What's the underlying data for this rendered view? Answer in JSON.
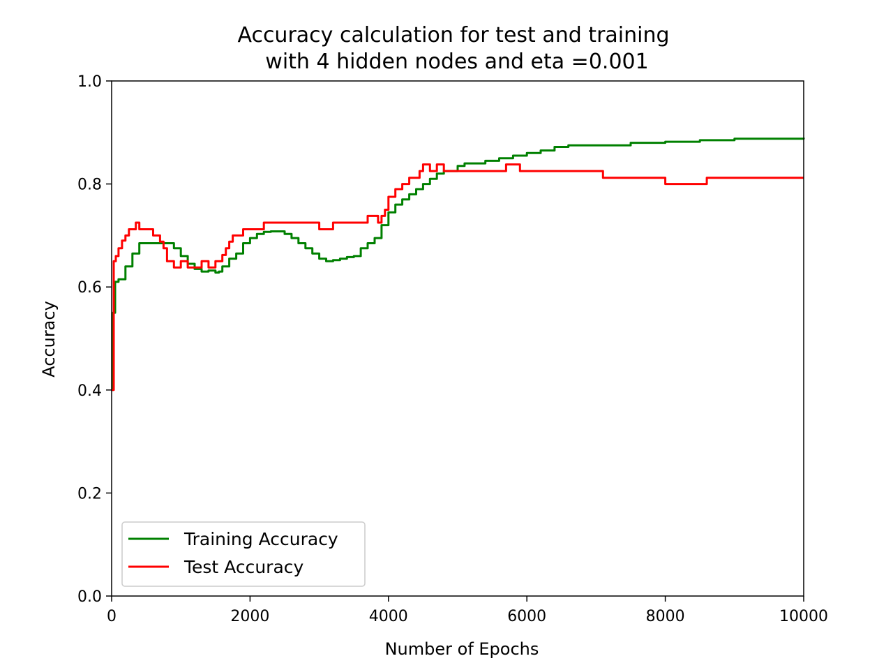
{
  "chart_data": {
    "type": "line",
    "title_lines": [
      "Accuracy calculation for test and training",
      "with 4 hidden nodes and eta =0.001"
    ],
    "xlabel": "Number of Epochs",
    "ylabel": "Accuracy",
    "xlim": [
      0,
      10000
    ],
    "ylim": [
      0,
      1
    ],
    "xticks": [
      0,
      2000,
      4000,
      6000,
      8000,
      10000
    ],
    "xtick_labels": [
      "0",
      "2000",
      "4000",
      "6000",
      "8000",
      "10000"
    ],
    "yticks": [
      0,
      0.2,
      0.4,
      0.6,
      0.8,
      1.0
    ],
    "ytick_labels": [
      "0.0",
      "0.2",
      "0.4",
      "0.6",
      "0.8",
      "1.0"
    ],
    "grid": false,
    "legend": "lower-left",
    "series": [
      {
        "name": "Training Accuracy",
        "color": "#008000",
        "x": [
          0,
          20,
          50,
          100,
          200,
          300,
          400,
          500,
          600,
          700,
          800,
          900,
          1000,
          1100,
          1200,
          1300,
          1400,
          1500,
          1550,
          1600,
          1700,
          1800,
          1900,
          2000,
          2100,
          2200,
          2300,
          2400,
          2500,
          2600,
          2700,
          2800,
          2900,
          3000,
          3100,
          3200,
          3300,
          3400,
          3500,
          3600,
          3700,
          3800,
          3900,
          4000,
          4100,
          4200,
          4300,
          4400,
          4500,
          4600,
          4700,
          4800,
          5000,
          5100,
          5200,
          5400,
          5600,
          5800,
          6000,
          6200,
          6400,
          6600,
          6800,
          7000,
          7500,
          8000,
          8500,
          9000,
          9500,
          10000
        ],
        "y": [
          0.4,
          0.55,
          0.61,
          0.615,
          0.64,
          0.665,
          0.685,
          0.685,
          0.685,
          0.685,
          0.685,
          0.675,
          0.66,
          0.645,
          0.635,
          0.63,
          0.632,
          0.628,
          0.63,
          0.64,
          0.655,
          0.665,
          0.685,
          0.695,
          0.703,
          0.707,
          0.708,
          0.708,
          0.703,
          0.695,
          0.685,
          0.675,
          0.665,
          0.655,
          0.65,
          0.652,
          0.655,
          0.658,
          0.66,
          0.675,
          0.685,
          0.695,
          0.72,
          0.745,
          0.76,
          0.77,
          0.78,
          0.79,
          0.8,
          0.81,
          0.82,
          0.825,
          0.835,
          0.84,
          0.84,
          0.845,
          0.85,
          0.855,
          0.86,
          0.865,
          0.872,
          0.875,
          0.875,
          0.875,
          0.88,
          0.882,
          0.885,
          0.888,
          0.888,
          0.89
        ]
      },
      {
        "name": "Test Accuracy",
        "color": "#ff0000",
        "x": [
          0,
          30,
          60,
          100,
          150,
          200,
          250,
          300,
          350,
          400,
          500,
          600,
          700,
          750,
          800,
          900,
          1000,
          1100,
          1200,
          1300,
          1400,
          1500,
          1600,
          1650,
          1700,
          1750,
          1800,
          1900,
          2000,
          2200,
          2400,
          2600,
          2800,
          3000,
          3100,
          3200,
          3400,
          3600,
          3700,
          3800,
          3850,
          3900,
          3950,
          4000,
          4100,
          4200,
          4300,
          4400,
          4450,
          4500,
          4600,
          4700,
          4800,
          5000,
          5200,
          5400,
          5600,
          5700,
          5800,
          5900,
          6000,
          6500,
          7000,
          7100,
          7500,
          7900,
          8000,
          8500,
          8600,
          8700,
          9000,
          9500,
          10000
        ],
        "y": [
          0.4,
          0.65,
          0.66,
          0.675,
          0.69,
          0.7,
          0.712,
          0.712,
          0.725,
          0.712,
          0.712,
          0.7,
          0.688,
          0.675,
          0.65,
          0.638,
          0.65,
          0.638,
          0.638,
          0.65,
          0.638,
          0.65,
          0.662,
          0.675,
          0.688,
          0.7,
          0.7,
          0.712,
          0.712,
          0.725,
          0.725,
          0.725,
          0.725,
          0.712,
          0.712,
          0.725,
          0.725,
          0.725,
          0.738,
          0.738,
          0.725,
          0.738,
          0.75,
          0.775,
          0.79,
          0.8,
          0.812,
          0.812,
          0.825,
          0.838,
          0.825,
          0.838,
          0.825,
          0.825,
          0.825,
          0.825,
          0.825,
          0.838,
          0.838,
          0.825,
          0.825,
          0.825,
          0.825,
          0.812,
          0.812,
          0.812,
          0.8,
          0.8,
          0.812,
          0.812,
          0.812,
          0.812,
          0.812
        ]
      }
    ]
  }
}
